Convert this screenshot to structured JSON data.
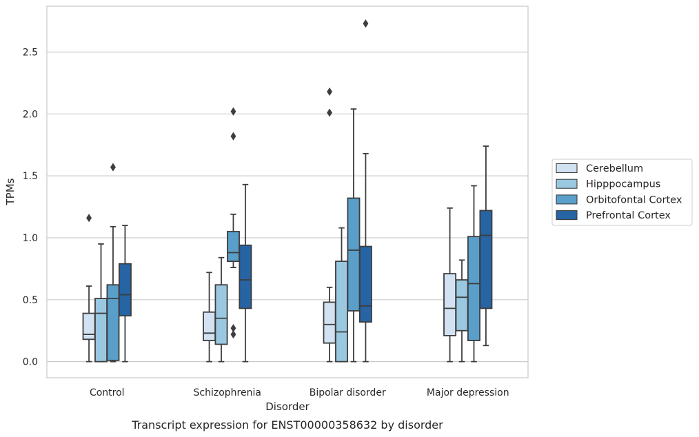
{
  "chart_data": {
    "type": "box",
    "caption": "Transcript expression for ENST00000358632 by disorder",
    "xlabel": "Disorder",
    "ylabel": "TPMs",
    "ylim": [
      -0.13,
      2.87
    ],
    "yticks": [
      "0.0",
      "0.5",
      "1.0",
      "1.5",
      "2.0",
      "2.5"
    ],
    "ytick_values": [
      0,
      0.5,
      1.0,
      1.5,
      2.0,
      2.5
    ],
    "grid": "horizontal",
    "legend_position": "right",
    "categories": [
      "Control",
      "Schizophrenia",
      "Bipolar disorder",
      "Major depression"
    ],
    "series": [
      {
        "name": "Cerebellum",
        "color": "#d2e2f2",
        "boxes": [
          {
            "whisker_low": 0.0,
            "q1": 0.18,
            "median": 0.22,
            "q3": 0.39,
            "whisker_high": 0.61,
            "outliers": [
              1.16
            ]
          },
          {
            "whisker_low": 0.0,
            "q1": 0.17,
            "median": 0.23,
            "q3": 0.4,
            "whisker_high": 0.72,
            "outliers": []
          },
          {
            "whisker_low": 0.0,
            "q1": 0.15,
            "median": 0.3,
            "q3": 0.48,
            "whisker_high": 0.6,
            "outliers": [
              2.01,
              2.18
            ]
          },
          {
            "whisker_low": 0.0,
            "q1": 0.21,
            "median": 0.43,
            "q3": 0.71,
            "whisker_high": 1.24,
            "outliers": []
          }
        ]
      },
      {
        "name": "Hipppocampus",
        "color": "#9ac8e0",
        "boxes": [
          {
            "whisker_low": 0.0,
            "q1": 0.0,
            "median": 0.39,
            "q3": 0.51,
            "whisker_high": 0.95,
            "outliers": []
          },
          {
            "whisker_low": 0.0,
            "q1": 0.14,
            "median": 0.35,
            "q3": 0.62,
            "whisker_high": 0.84,
            "outliers": []
          },
          {
            "whisker_low": 0.0,
            "q1": 0.0,
            "median": 0.24,
            "q3": 0.81,
            "whisker_high": 1.08,
            "outliers": []
          },
          {
            "whisker_low": 0.0,
            "q1": 0.25,
            "median": 0.52,
            "q3": 0.66,
            "whisker_high": 0.82,
            "outliers": []
          }
        ]
      },
      {
        "name": "Orbitofontal Cortex",
        "color": "#5a9fca",
        "boxes": [
          {
            "whisker_low": 0.0,
            "q1": 0.01,
            "median": 0.51,
            "q3": 0.62,
            "whisker_high": 1.09,
            "outliers": [
              1.57
            ]
          },
          {
            "whisker_low": 0.76,
            "q1": 0.81,
            "median": 0.88,
            "q3": 1.05,
            "whisker_high": 1.19,
            "outliers": [
              1.82,
              2.02,
              0.27,
              0.22
            ]
          },
          {
            "whisker_low": 0.0,
            "q1": 0.41,
            "median": 0.9,
            "q3": 1.32,
            "whisker_high": 2.04,
            "outliers": []
          },
          {
            "whisker_low": 0.0,
            "q1": 0.17,
            "median": 0.63,
            "q3": 1.01,
            "whisker_high": 1.42,
            "outliers": []
          }
        ]
      },
      {
        "name": "Prefrontal Cortex",
        "color": "#2664a4",
        "boxes": [
          {
            "whisker_low": 0.0,
            "q1": 0.37,
            "median": 0.54,
            "q3": 0.79,
            "whisker_high": 1.1,
            "outliers": []
          },
          {
            "whisker_low": 0.0,
            "q1": 0.43,
            "median": 0.66,
            "q3": 0.94,
            "whisker_high": 1.43,
            "outliers": []
          },
          {
            "whisker_low": 0.0,
            "q1": 0.32,
            "median": 0.45,
            "q3": 0.93,
            "whisker_high": 1.68,
            "outliers": [
              2.73
            ]
          },
          {
            "whisker_low": 0.13,
            "q1": 0.43,
            "median": 1.02,
            "q3": 1.22,
            "whisker_high": 1.74,
            "outliers": []
          }
        ]
      }
    ]
  }
}
